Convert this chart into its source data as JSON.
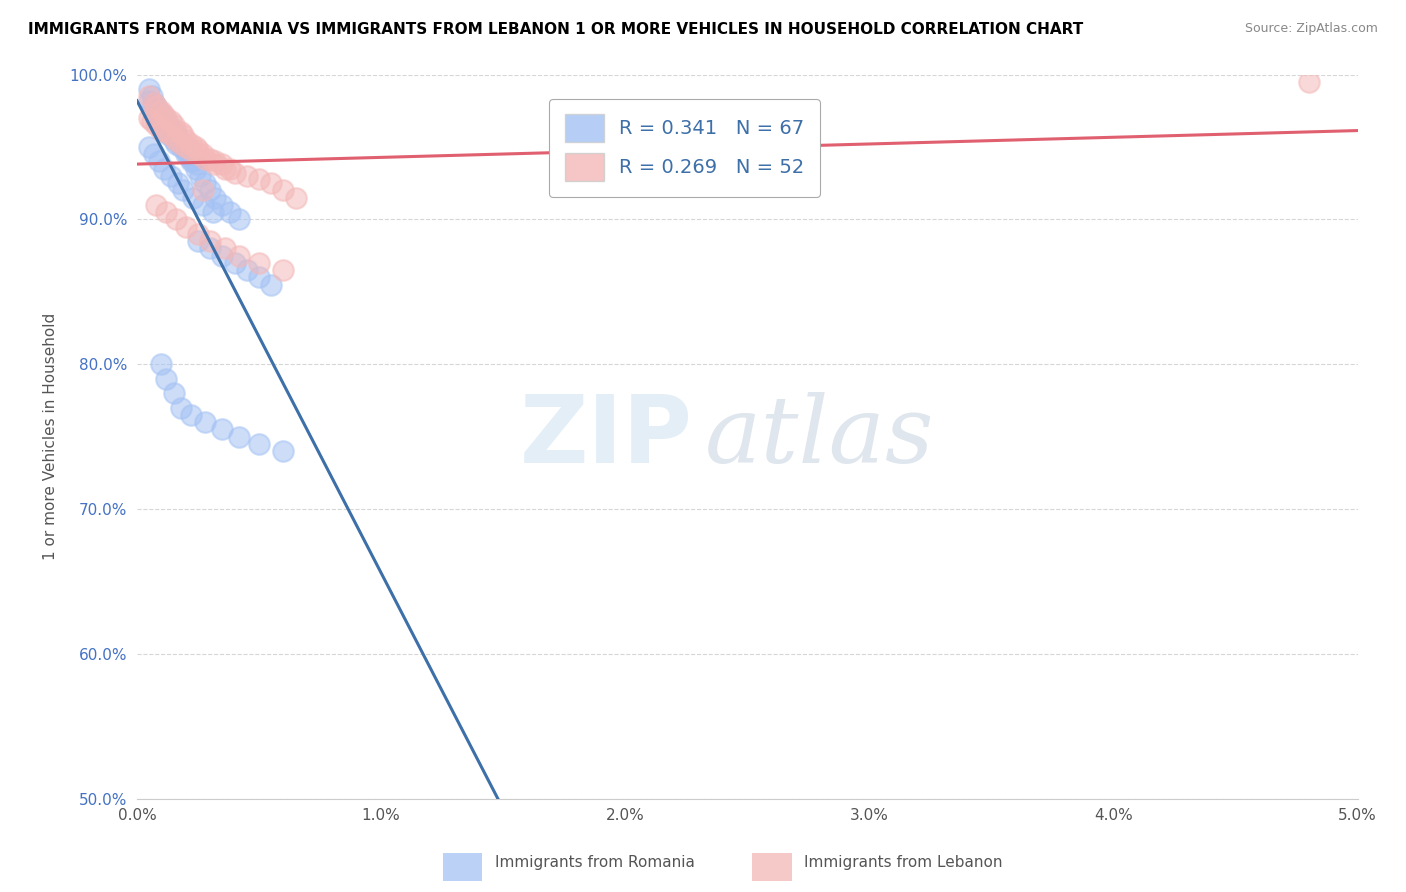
{
  "title": "IMMIGRANTS FROM ROMANIA VS IMMIGRANTS FROM LEBANON 1 OR MORE VEHICLES IN HOUSEHOLD CORRELATION CHART",
  "source": "Source: ZipAtlas.com",
  "ylabel": "1 or more Vehicles in Household",
  "xlim": [
    0.0,
    5.0
  ],
  "ylim": [
    50.0,
    100.0
  ],
  "romania_R": 0.341,
  "romania_N": 67,
  "lebanon_R": 0.269,
  "lebanon_N": 52,
  "romania_color": "#a4c2f4",
  "lebanon_color": "#f4b8b8",
  "romania_line_color": "#3d6fa8",
  "lebanon_line_color": "#e06070",
  "legend_label_romania": "Immigrants from Romania",
  "legend_label_lebanon": "Immigrants from Lebanon",
  "watermark_zip": "ZIP",
  "watermark_atlas": "atlas",
  "romania_x": [
    0.05,
    0.06,
    0.07,
    0.08,
    0.09,
    0.1,
    0.11,
    0.12,
    0.13,
    0.14,
    0.15,
    0.16,
    0.17,
    0.18,
    0.19,
    0.2,
    0.21,
    0.22,
    0.23,
    0.24,
    0.05,
    0.06,
    0.08,
    0.09,
    0.1,
    0.12,
    0.13,
    0.15,
    0.16,
    0.18,
    0.2,
    0.22,
    0.24,
    0.26,
    0.28,
    0.3,
    0.32,
    0.35,
    0.38,
    0.42,
    0.05,
    0.07,
    0.09,
    0.11,
    0.14,
    0.17,
    0.19,
    0.23,
    0.27,
    0.31,
    0.25,
    0.3,
    0.35,
    0.4,
    0.45,
    0.5,
    0.55,
    0.1,
    0.12,
    0.15,
    0.18,
    0.22,
    0.28,
    0.35,
    0.42,
    0.5,
    0.6
  ],
  "romania_y": [
    99.0,
    98.5,
    98.0,
    97.8,
    97.5,
    97.2,
    97.0,
    96.8,
    96.5,
    96.2,
    96.0,
    95.8,
    95.5,
    95.2,
    95.0,
    94.8,
    94.5,
    94.2,
    94.0,
    93.8,
    98.2,
    97.8,
    97.0,
    96.8,
    96.5,
    96.0,
    95.8,
    95.5,
    95.2,
    95.0,
    94.5,
    94.0,
    93.5,
    93.0,
    92.5,
    92.0,
    91.5,
    91.0,
    90.5,
    90.0,
    95.0,
    94.5,
    94.0,
    93.5,
    93.0,
    92.5,
    92.0,
    91.5,
    91.0,
    90.5,
    88.5,
    88.0,
    87.5,
    87.0,
    86.5,
    86.0,
    85.5,
    80.0,
    79.0,
    78.0,
    77.0,
    76.5,
    76.0,
    75.5,
    75.0,
    74.5,
    74.0
  ],
  "lebanon_x": [
    0.05,
    0.07,
    0.08,
    0.1,
    0.11,
    0.12,
    0.14,
    0.15,
    0.16,
    0.18,
    0.19,
    0.2,
    0.22,
    0.24,
    0.25,
    0.27,
    0.3,
    0.32,
    0.35,
    0.38,
    0.05,
    0.06,
    0.08,
    0.1,
    0.12,
    0.14,
    0.16,
    0.18,
    0.2,
    0.22,
    0.25,
    0.28,
    0.32,
    0.36,
    0.4,
    0.45,
    0.5,
    0.55,
    0.6,
    0.65,
    0.08,
    0.12,
    0.16,
    0.2,
    0.25,
    0.3,
    0.36,
    0.42,
    0.5,
    0.6,
    0.27,
    4.8
  ],
  "lebanon_y": [
    98.5,
    98.0,
    97.8,
    97.5,
    97.2,
    97.0,
    96.8,
    96.5,
    96.2,
    96.0,
    95.8,
    95.5,
    95.2,
    95.0,
    94.8,
    94.5,
    94.2,
    94.0,
    93.8,
    93.5,
    97.0,
    96.8,
    96.5,
    96.2,
    96.0,
    95.8,
    95.5,
    95.2,
    95.0,
    94.8,
    94.5,
    94.2,
    93.8,
    93.5,
    93.2,
    93.0,
    92.8,
    92.5,
    92.0,
    91.5,
    91.0,
    90.5,
    90.0,
    89.5,
    89.0,
    88.5,
    88.0,
    87.5,
    87.0,
    86.5,
    92.0,
    99.5
  ]
}
